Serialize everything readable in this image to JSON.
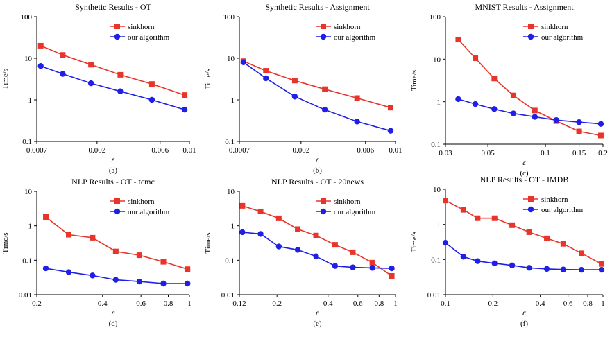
{
  "colors": {
    "sinkhorn": "#e8352b",
    "ours": "#1f1fe6",
    "axis": "#000000"
  },
  "chart_data": [
    {
      "type": "line",
      "title": "Synthetic Results - OT",
      "xlabel": "ε",
      "ylabel": "Time/s",
      "caption": "(a)",
      "xscale": "log",
      "yscale": "log",
      "xlim": [
        0.0007,
        0.01
      ],
      "ylim": [
        0.1,
        100
      ],
      "xticks": [
        {
          "v": 0.0007,
          "label": "0.0007"
        },
        {
          "v": 0.002,
          "label": "0.002"
        },
        {
          "v": 0.006,
          "label": "0.006"
        },
        {
          "v": 0.01,
          "label": "0.01"
        }
      ],
      "yticks": [
        {
          "v": 0.1,
          "label": "0.1"
        },
        {
          "v": 1,
          "label": "1"
        },
        {
          "v": 10,
          "label": "10"
        },
        {
          "v": 100,
          "label": "100"
        }
      ],
      "legend": "top-right",
      "series": [
        {
          "name": "sinkhorn",
          "marker": "square",
          "x": [
            0.00075,
            0.0011,
            0.0018,
            0.003,
            0.0052,
            0.0092
          ],
          "y": [
            20,
            12,
            7,
            4,
            2.4,
            1.3
          ]
        },
        {
          "name": "our algorithm",
          "marker": "circle",
          "x": [
            0.00075,
            0.0011,
            0.0018,
            0.003,
            0.0052,
            0.0092
          ],
          "y": [
            6.5,
            4.2,
            2.5,
            1.6,
            1.0,
            0.58
          ]
        }
      ]
    },
    {
      "type": "line",
      "title": "Synthetic Results - Assignment",
      "xlabel": "ε",
      "ylabel": "Time/s",
      "caption": "(b)",
      "xscale": "log",
      "yscale": "log",
      "xlim": [
        0.0007,
        0.01
      ],
      "ylim": [
        0.1,
        100
      ],
      "xticks": [
        {
          "v": 0.0007,
          "label": "0.0007"
        },
        {
          "v": 0.002,
          "label": "0.002"
        },
        {
          "v": 0.006,
          "label": "0.006"
        },
        {
          "v": 0.01,
          "label": "0.01"
        }
      ],
      "yticks": [
        {
          "v": 0.1,
          "label": "0.1"
        },
        {
          "v": 1,
          "label": "1"
        },
        {
          "v": 10,
          "label": "10"
        },
        {
          "v": 100,
          "label": "100"
        }
      ],
      "legend": "top-right",
      "series": [
        {
          "name": "sinkhorn",
          "marker": "square",
          "x": [
            0.00075,
            0.0011,
            0.0018,
            0.003,
            0.0052,
            0.0092
          ],
          "y": [
            8.5,
            5,
            2.9,
            1.8,
            1.1,
            0.65
          ]
        },
        {
          "name": "our algorithm",
          "marker": "circle",
          "x": [
            0.00075,
            0.0011,
            0.0018,
            0.003,
            0.0052,
            0.0092
          ],
          "y": [
            8,
            3.3,
            1.2,
            0.58,
            0.3,
            0.18
          ]
        }
      ]
    },
    {
      "type": "line",
      "title": "MNIST Results - Assignment",
      "xlabel": "ε",
      "ylabel": "Time/s",
      "caption": "(c)",
      "xscale": "log",
      "yscale": "log",
      "xlim": [
        0.03,
        0.2
      ],
      "ylim": [
        0.1,
        100
      ],
      "xticks": [
        {
          "v": 0.03,
          "label": "0.03"
        },
        {
          "v": 0.05,
          "label": "0.05"
        },
        {
          "v": 0.1,
          "label": "0.1"
        },
        {
          "v": 0.15,
          "label": "0.15"
        },
        {
          "v": 0.2,
          "label": "0.2"
        }
      ],
      "yticks": [
        {
          "v": 0.1,
          "label": "0.1"
        },
        {
          "v": 1,
          "label": "1"
        },
        {
          "v": 10,
          "label": "10"
        },
        {
          "v": 100,
          "label": "100"
        }
      ],
      "legend": "top-right",
      "series": [
        {
          "name": "sinkhorn",
          "marker": "square",
          "x": [
            0.035,
            0.043,
            0.054,
            0.068,
            0.088,
            0.114,
            0.15,
            0.195
          ],
          "y": [
            29,
            10.5,
            3.5,
            1.4,
            0.62,
            0.35,
            0.2,
            0.16
          ]
        },
        {
          "name": "our algorithm",
          "marker": "circle",
          "x": [
            0.035,
            0.043,
            0.054,
            0.068,
            0.088,
            0.114,
            0.15,
            0.195
          ],
          "y": [
            1.15,
            0.88,
            0.67,
            0.53,
            0.44,
            0.37,
            0.33,
            0.3
          ]
        }
      ]
    },
    {
      "type": "line",
      "title": "NLP Results - OT - tcmc",
      "xlabel": "ε",
      "ylabel": "Time/s",
      "caption": "(d)",
      "xscale": "log",
      "yscale": "log",
      "xlim": [
        0.2,
        1
      ],
      "ylim": [
        0.01,
        10
      ],
      "xticks": [
        {
          "v": 0.2,
          "label": "0.2"
        },
        {
          "v": 0.4,
          "label": "0.4"
        },
        {
          "v": 0.6,
          "label": "0.6"
        },
        {
          "v": 0.8,
          "label": "0.8"
        },
        {
          "v": 1,
          "label": "1"
        }
      ],
      "yticks": [
        {
          "v": 0.01,
          "label": "0.01"
        },
        {
          "v": 0.1,
          "label": "0.1"
        },
        {
          "v": 1,
          "label": "1"
        },
        {
          "v": 10,
          "label": "10"
        }
      ],
      "legend": "top-right",
      "series": [
        {
          "name": "sinkhorn",
          "marker": "square",
          "x": [
            0.22,
            0.28,
            0.36,
            0.46,
            0.59,
            0.76,
            0.98
          ],
          "y": [
            1.8,
            0.55,
            0.45,
            0.18,
            0.14,
            0.09,
            0.055
          ]
        },
        {
          "name": "our algorithm",
          "marker": "circle",
          "x": [
            0.22,
            0.28,
            0.36,
            0.46,
            0.59,
            0.76,
            0.98
          ],
          "y": [
            0.058,
            0.045,
            0.036,
            0.027,
            0.024,
            0.021,
            0.021
          ]
        }
      ]
    },
    {
      "type": "line",
      "title": "NLP Results - OT - 20news",
      "xlabel": "ε",
      "ylabel": "Time/s",
      "caption": "(e)",
      "xscale": "log",
      "yscale": "log",
      "xlim": [
        0.12,
        1
      ],
      "ylim": [
        0.01,
        10
      ],
      "xticks": [
        {
          "v": 0.12,
          "label": "0.12"
        },
        {
          "v": 0.2,
          "label": "0.2"
        },
        {
          "v": 0.4,
          "label": "0.4"
        },
        {
          "v": 0.6,
          "label": "0.6"
        },
        {
          "v": 0.8,
          "label": "0.8"
        },
        {
          "v": 1,
          "label": "1"
        }
      ],
      "yticks": [
        {
          "v": 0.01,
          "label": "0.01"
        },
        {
          "v": 0.1,
          "label": "0.1"
        },
        {
          "v": 1,
          "label": "1"
        },
        {
          "v": 10,
          "label": "10"
        }
      ],
      "legend": "top-right",
      "series": [
        {
          "name": "sinkhorn",
          "marker": "square",
          "x": [
            0.125,
            0.16,
            0.205,
            0.265,
            0.34,
            0.44,
            0.56,
            0.73,
            0.95
          ],
          "y": [
            3.8,
            2.6,
            1.65,
            0.8,
            0.52,
            0.28,
            0.17,
            0.085,
            0.035
          ]
        },
        {
          "name": "our algorithm",
          "marker": "circle",
          "x": [
            0.125,
            0.16,
            0.205,
            0.265,
            0.34,
            0.44,
            0.56,
            0.73,
            0.95
          ],
          "y": [
            0.65,
            0.58,
            0.25,
            0.2,
            0.13,
            0.068,
            0.062,
            0.06,
            0.058
          ]
        }
      ]
    },
    {
      "type": "line",
      "title": "NLP Results - OT - IMDB",
      "xlabel": "ε",
      "ylabel": "Time/s",
      "caption": "(f)",
      "xscale": "log",
      "yscale": "log",
      "xlim": [
        0.1,
        1
      ],
      "ylim": [
        0.01,
        10
      ],
      "xticks": [
        {
          "v": 0.1,
          "label": "0.1"
        },
        {
          "v": 0.2,
          "label": "0.2"
        },
        {
          "v": 0.4,
          "label": "0.4"
        },
        {
          "v": 0.6,
          "label": "0.6"
        },
        {
          "v": 0.8,
          "label": "0.8"
        },
        {
          "v": 1,
          "label": "1"
        }
      ],
      "yticks": [
        {
          "v": 0.01,
          "label": "0.01"
        },
        {
          "v": 0.1,
          "label": "0.1"
        },
        {
          "v": 1,
          "label": "1"
        },
        {
          "v": 10,
          "label": "10"
        }
      ],
      "legend": "top-right",
      "series": [
        {
          "name": "sinkhorn",
          "marker": "square",
          "x": [
            0.1,
            0.13,
            0.16,
            0.205,
            0.265,
            0.34,
            0.44,
            0.56,
            0.73,
            0.98
          ],
          "y": [
            4.8,
            2.6,
            1.5,
            1.5,
            0.95,
            0.6,
            0.4,
            0.28,
            0.15,
            0.075
          ]
        },
        {
          "name": "our algorithm",
          "marker": "circle",
          "x": [
            0.1,
            0.13,
            0.16,
            0.205,
            0.265,
            0.34,
            0.44,
            0.56,
            0.73,
            0.98
          ],
          "y": [
            0.3,
            0.12,
            0.09,
            0.078,
            0.068,
            0.058,
            0.054,
            0.052,
            0.051,
            0.051
          ]
        }
      ]
    }
  ]
}
